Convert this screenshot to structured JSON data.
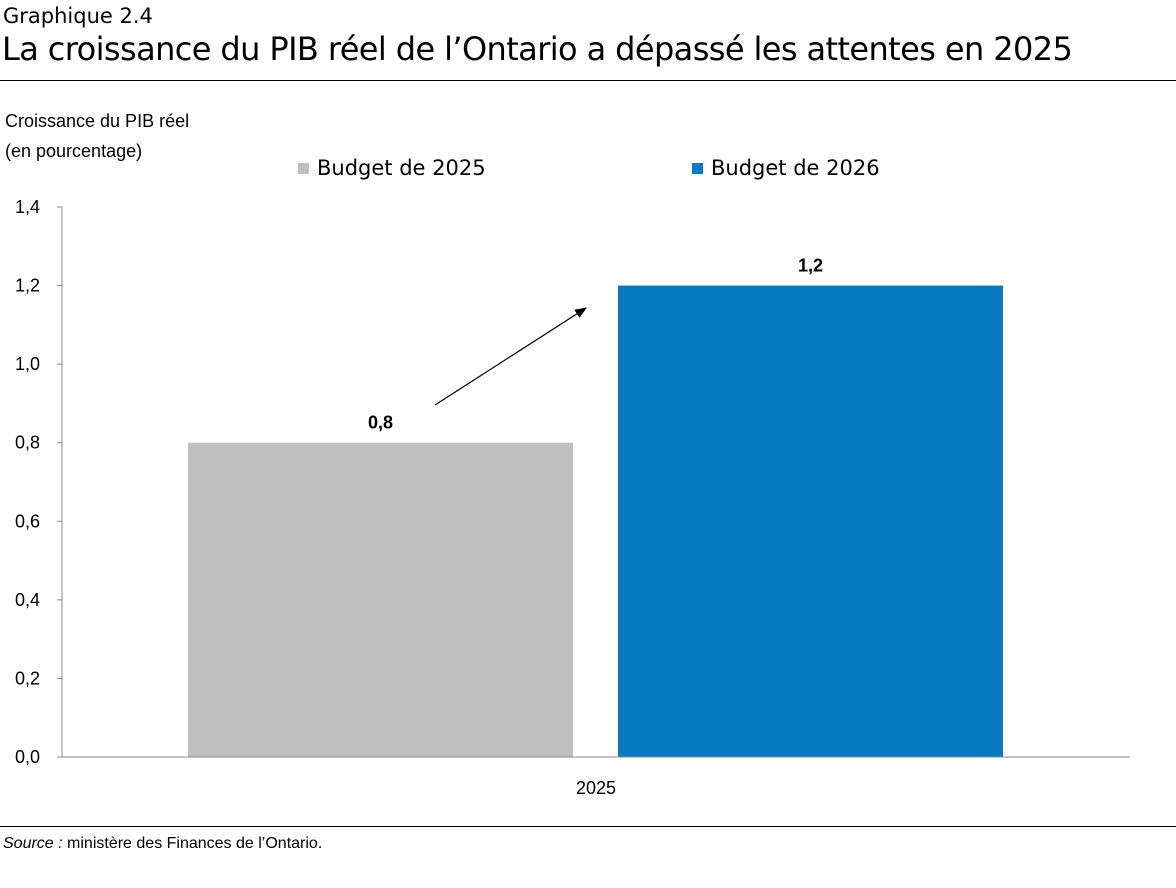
{
  "header": {
    "kicker": "Graphique 2.4",
    "title": "La croissance du PIB réel de l’Ontario a dépassé les attentes en 2025"
  },
  "footer": {
    "source_label": "Source :",
    "source_text": " ministère des Finances de l’Ontario."
  },
  "chart_data": {
    "type": "bar",
    "title": "",
    "ylabel_line1": "Croissance du PIB réel",
    "ylabel_line2": "(en pourcentage)",
    "xlabel": "",
    "categories": [
      "2025"
    ],
    "series": [
      {
        "name": "Budget de 2025",
        "values": [
          0.8
        ],
        "labels": [
          "0,8"
        ],
        "color": "#bfbfbf"
      },
      {
        "name": "Budget de 2026",
        "values": [
          1.2
        ],
        "labels": [
          "1,2"
        ],
        "color": "#0779bf"
      }
    ],
    "ylim": [
      0,
      1.4
    ],
    "yticks": [
      0,
      0.2,
      0.4,
      0.6,
      0.8,
      1.0,
      1.2,
      1.4
    ],
    "ytick_labels": [
      "0,0",
      "0,2",
      "0,4",
      "0,6",
      "0,8",
      "1,0",
      "1,2",
      "1,4"
    ],
    "grid": false,
    "legend": "top",
    "annotation": "arrow from Budget de 2025 bar to Budget de 2026 bar"
  }
}
